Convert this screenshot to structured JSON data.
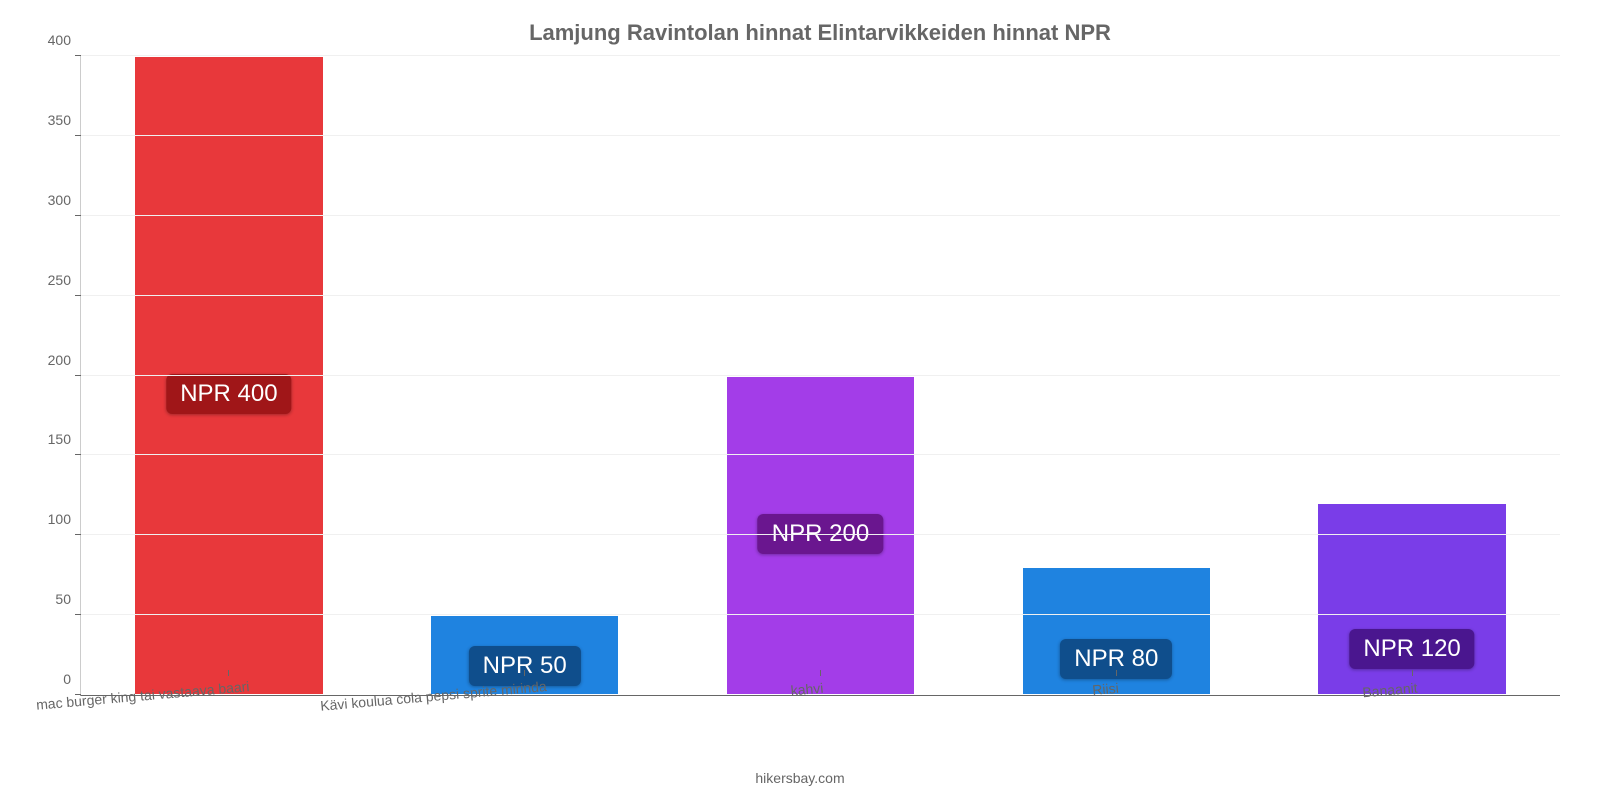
{
  "chart": {
    "type": "bar",
    "title": "Lamjung Ravintolan hinnat Elintarvikkeiden hinnat NPR",
    "title_fontsize": 22,
    "title_color": "#666666",
    "background_color": "#ffffff",
    "grid_color": "#f0f0f0",
    "axis_color": "#666666",
    "label_color": "#666666",
    "label_fontsize": 14,
    "ylim": [
      0,
      400
    ],
    "ytick_step": 50,
    "yticks": [
      0,
      50,
      100,
      150,
      200,
      250,
      300,
      350,
      400
    ],
    "bar_width": 0.64,
    "x_label_rotation_deg": -5,
    "badge_fontsize": 24,
    "badge_text_color": "#ffffff",
    "attribution": "hikersbay.com",
    "categories": [
      "mac burger king tai vastaava baari",
      "Kävi koulua cola pepsi sprite mirinda",
      "kahvi",
      "Riisi",
      "Banaanit"
    ],
    "values": [
      400,
      50,
      200,
      80,
      120
    ],
    "value_labels": [
      "NPR 400",
      "NPR 50",
      "NPR 200",
      "NPR 80",
      "NPR 120"
    ],
    "bar_colors": [
      "#e8383b",
      "#1f83e0",
      "#a33de8",
      "#1f83e0",
      "#7a3de8"
    ],
    "badge_colors": [
      "#a01618",
      "#0f4e8c",
      "#6a168f",
      "#0f4e8c",
      "#4a168f"
    ],
    "badge_offsets_pct": [
      44,
      10,
      44,
      12,
      13
    ]
  }
}
